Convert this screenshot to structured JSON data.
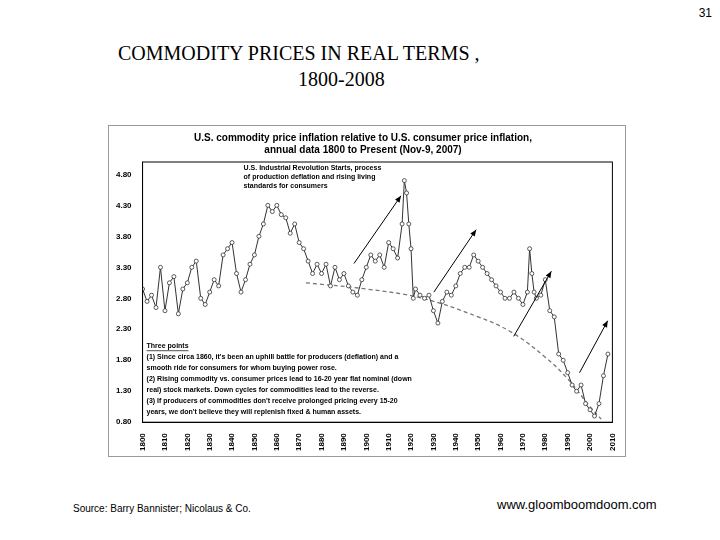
{
  "header": {
    "page": "31",
    "title": [
      "COMMODITY PRICES IN REAL TERMS ,",
      "1800-2008"
    ]
  },
  "footer": {
    "source": "Source: Barry Bannister; Nicolaus & Co.",
    "url": "www.gloomboomdoom.com"
  },
  "chart_data": {
    "type": "line",
    "title": [
      "U.S. commodity price inflation relative to U.S. consumer price inflation,",
      "annual data 1800 to Present (Nov-9, 2007)"
    ],
    "annotations": [
      [
        "U.S. Industrial Revolution Starts, process",
        "of production deflation and rising living",
        "standards for consumers"
      ],
      [
        "Three points",
        "(1) Since circa 1860, it's been an uphill battle for producers (deflation) and a",
        "smooth ride for consumers for whom buying power rose.",
        "(2) Rising commodity vs. consumer prices lead to 16-20 year flat nominal (down",
        "real) stock markets. Down cycles for commodities lead to the reverse.",
        "(3) If producers of commodities don't receive prolonged pricing every 15-20",
        "years, we don't believe they will replenish fixed & human assets."
      ]
    ],
    "series": [
      {
        "color": "#333333",
        "marker": "circle",
        "line_style": "solid",
        "x": [
          1800,
          1802,
          1804,
          1806,
          1808,
          1810,
          1812,
          1814,
          1816,
          1818,
          1820,
          1822,
          1824,
          1826,
          1828,
          1830,
          1832,
          1834,
          1836,
          1838,
          1840,
          1842,
          1844,
          1846,
          1848,
          1850,
          1852,
          1854,
          1856,
          1858,
          1860,
          1862,
          1864,
          1866,
          1868,
          1870,
          1872,
          1874,
          1876,
          1878,
          1880,
          1882,
          1884,
          1886,
          1888,
          1890,
          1892,
          1894,
          1896,
          1898,
          1900,
          1902,
          1904,
          1906,
          1908,
          1910,
          1912,
          1914,
          1916,
          1917,
          1918,
          1919,
          1920,
          1921,
          1922,
          1924,
          1926,
          1928,
          1930,
          1932,
          1934,
          1936,
          1938,
          1940,
          1942,
          1944,
          1946,
          1948,
          1950,
          1952,
          1954,
          1956,
          1958,
          1960,
          1962,
          1964,
          1966,
          1968,
          1970,
          1972,
          1973,
          1974,
          1975,
          1976,
          1978,
          1980,
          1982,
          1984,
          1986,
          1988,
          1990,
          1992,
          1994,
          1996,
          1998,
          2000,
          2002,
          2004,
          2006,
          2008
        ],
        "values": [
          2.95,
          2.75,
          2.85,
          2.65,
          3.3,
          2.6,
          3.05,
          3.15,
          2.55,
          2.95,
          3.05,
          3.3,
          3.4,
          2.8,
          2.7,
          2.9,
          3.1,
          3.0,
          3.5,
          3.6,
          3.7,
          3.2,
          2.9,
          3.1,
          3.35,
          3.5,
          3.8,
          4.0,
          4.3,
          4.2,
          4.3,
          4.15,
          4.1,
          3.85,
          4.0,
          3.7,
          3.6,
          3.4,
          3.2,
          3.35,
          3.2,
          3.35,
          3.0,
          3.3,
          3.1,
          3.2,
          3.0,
          2.9,
          2.85,
          3.1,
          3.3,
          3.5,
          3.4,
          3.5,
          3.3,
          3.7,
          3.6,
          3.45,
          4.0,
          4.7,
          4.5,
          4.0,
          3.6,
          2.8,
          2.95,
          2.85,
          2.8,
          2.85,
          2.6,
          2.4,
          2.75,
          2.9,
          2.85,
          3.0,
          3.2,
          3.3,
          3.3,
          3.5,
          3.4,
          3.3,
          3.2,
          3.1,
          3.0,
          2.9,
          2.8,
          2.8,
          2.9,
          2.8,
          2.7,
          2.9,
          3.6,
          3.2,
          2.9,
          2.8,
          2.85,
          3.1,
          2.6,
          2.5,
          1.9,
          1.8,
          1.6,
          1.4,
          1.3,
          1.4,
          1.1,
          1.0,
          0.9,
          1.1,
          1.55,
          1.9
        ]
      },
      {
        "color": "#777777",
        "marker": "none",
        "line_style": "dashed",
        "x": [
          1873,
          1900,
          1925,
          1950,
          1965,
          1980,
          1990,
          2000,
          2005
        ],
        "values": [
          3.05,
          2.95,
          2.8,
          2.5,
          2.25,
          1.85,
          1.5,
          1.05,
          0.85
        ]
      }
    ],
    "xlim": [
      1800,
      2010
    ],
    "xticks": [
      1800,
      1810,
      1820,
      1830,
      1840,
      1850,
      1860,
      1870,
      1880,
      1890,
      1900,
      1910,
      1920,
      1930,
      1940,
      1950,
      1960,
      1970,
      1980,
      1990,
      2000,
      2010
    ],
    "ylim": [
      0.8,
      5.0
    ],
    "yticks": [
      {
        "value": 0.8,
        "label": "0.80"
      },
      {
        "value": 1.3,
        "label": "1.30"
      },
      {
        "value": 1.8,
        "label": "1.80"
      },
      {
        "value": 2.3,
        "label": "2.30"
      },
      {
        "value": 2.8,
        "label": "2.80"
      },
      {
        "value": 3.3,
        "label": "3.30"
      },
      {
        "value": 3.8,
        "label": "3.80"
      },
      {
        "value": 4.3,
        "label": "4.30"
      },
      {
        "value": 4.8,
        "label": "4.80"
      }
    ],
    "grid": false
  }
}
